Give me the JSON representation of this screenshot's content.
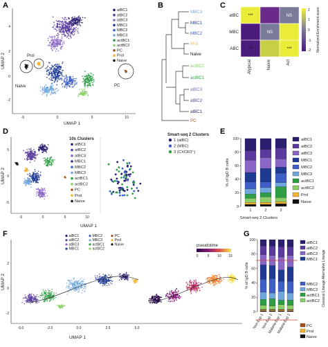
{
  "panels": {
    "A": {
      "letter": "A",
      "xlabel": "UMAP 1",
      "ylabel": "UMAP 2",
      "xticks": [
        "-5",
        "0",
        "5",
        "10"
      ],
      "yticks": [
        "-2",
        "0",
        "2",
        "4"
      ],
      "annotations": {
        "prol": "Prol",
        "naive": "Naive",
        "pc": "PC"
      },
      "legend": [
        "atBC1",
        "atBC2",
        "atBC3",
        "MBC1",
        "MBC2",
        "MBC3",
        "actBC1",
        "actBC2",
        "PC",
        "Prol",
        "Naive"
      ]
    },
    "B": {
      "letter": "B",
      "leaves": [
        "MBC3",
        "MBC1",
        "MBC2",
        "Prol",
        "Naive",
        "actBC2",
        "actBC1",
        "atBC3",
        "atBC2",
        "atBC1",
        "PC"
      ]
    },
    "C": {
      "letter": "C",
      "rows": [
        "atBC",
        "MBC",
        "ABC"
      ],
      "cols": [
        "Atypical",
        "Naive",
        "Act"
      ],
      "cells": [
        [
          "***",
          "",
          "NS"
        ],
        [
          "",
          "NS",
          ""
        ],
        [
          "***",
          "",
          "***"
        ]
      ],
      "colorbar_label": "Normalized Enrichment score",
      "colorbar_ticks": [
        "2",
        "1",
        "0",
        "-1",
        "-2"
      ]
    },
    "D": {
      "letter": "D",
      "xlabel": "UMAP 1",
      "ylabel": "UMAP 2",
      "xticks": [
        "-5",
        "0",
        "5",
        "10"
      ],
      "yticks": [
        "-5",
        "0",
        "5"
      ],
      "legend_title_10x": "10x Clusters",
      "legend_10x": [
        "atBC1",
        "atBC2",
        "atBC3",
        "MBC1",
        "MBC2",
        "MBC3",
        "actBC1",
        "actBC2",
        "PC",
        "Prol",
        "Naive"
      ],
      "legend_title_ss2": "Smart-seq 2 Clusters",
      "legend_ss2": [
        "1 (atBC)",
        "2 (MBC)",
        "3 (CXCR3⁺)"
      ]
    },
    "E": {
      "letter": "E",
      "ylabel": "% of IgD B cells",
      "xlabel": "Smart-seq 2 Clusters",
      "yticks": [
        "0",
        "20",
        "40",
        "60",
        "80",
        "100"
      ],
      "legend": [
        "atBC1",
        "atBC2",
        "atBC3",
        "MBC1",
        "MBC2",
        "MBC3",
        "actBC1",
        "actBC2",
        "Prol",
        "Naive"
      ]
    },
    "F": {
      "letter": "F",
      "xlabel": "UMAP 1",
      "ylabel": "UMAP 2",
      "xticks": [
        "-5.0",
        "-2.5",
        "0.0",
        "2.5",
        "5.0"
      ],
      "yticks": [
        "-2",
        "0",
        "2"
      ],
      "legend": [
        "atBC1",
        "atBC2",
        "atBC3",
        "MBC1",
        "MBC2",
        "MBC3",
        "actBC1",
        "actBC2",
        "PC",
        "Prol",
        "Naive"
      ],
      "pseudotime_label": "pseudotime",
      "pseudotime_ticks": [
        "0",
        "5",
        "10",
        "15"
      ]
    },
    "G": {
      "letter": "G",
      "ylabel": "% of IgD B cells",
      "yticks": [
        "0",
        "20",
        "40",
        "60",
        "80",
        "100"
      ],
      "categories": [
        "Non-Exp 1",
        "Non-Exp 2",
        "Malaria-Exp 1",
        "Malaria-Exp 2"
      ],
      "legend_top": [
        "atBC1",
        "atBC2",
        "atBC3",
        "MBC1"
      ],
      "legend_mid": [
        "MBC2",
        "MBC3",
        "actBC1",
        "actBC2"
      ],
      "legend_bottom": [
        "PC",
        "Prol",
        "Naive"
      ],
      "side_label": "Classical Lineage Alternative Lineage"
    }
  },
  "colors": {
    "atBC1": "#2a1e6e",
    "atBC2": "#5b3aa0",
    "atBC3": "#8a67c7",
    "MBC1": "#1f3a93",
    "MBC2": "#3e5fc7",
    "MBC3": "#6fa6dc",
    "actBC1": "#2e9e44",
    "actBC2": "#8ccf6a",
    "PC": "#a0521e",
    "Prol": "#f2b632",
    "Naive": "#111111"
  },
  "chart_data": [
    {
      "type": "bar",
      "panel": "E",
      "categories": [
        "1",
        "2",
        "3"
      ],
      "ylim": [
        0,
        100
      ],
      "ylabel": "% of IgD B cells",
      "xlabel": "Smart-seq 2 Clusters",
      "series": [
        {
          "name": "Naive",
          "values": [
            3,
            3,
            4
          ]
        },
        {
          "name": "Prol",
          "values": [
            3,
            3,
            3
          ]
        },
        {
          "name": "actBC2",
          "values": [
            6,
            8,
            6
          ]
        },
        {
          "name": "actBC1",
          "values": [
            6,
            6,
            16
          ]
        },
        {
          "name": "MBC3",
          "values": [
            8,
            8,
            6
          ]
        },
        {
          "name": "MBC2",
          "values": [
            10,
            8,
            14
          ]
        },
        {
          "name": "MBC1",
          "values": [
            14,
            20,
            9
          ]
        },
        {
          "name": "atBC3",
          "values": [
            18,
            16,
            12
          ]
        },
        {
          "name": "atBC2",
          "values": [
            14,
            12,
            16
          ]
        },
        {
          "name": "atBC1",
          "values": [
            18,
            16,
            14
          ]
        }
      ]
    },
    {
      "type": "bar",
      "panel": "G",
      "categories": [
        "Non-Exp 1",
        "Non-Exp 2",
        "Malaria-Exp 1",
        "Malaria-Exp 2"
      ],
      "ylim": [
        0,
        100
      ],
      "ylabel": "% of IgD B cells",
      "series": [
        {
          "name": "Naive",
          "values": [
            1,
            1,
            1,
            1
          ]
        },
        {
          "name": "Prol",
          "values": [
            1,
            1,
            1,
            1
          ]
        },
        {
          "name": "PC",
          "values": [
            1,
            1,
            1,
            1
          ]
        },
        {
          "name": "actBC2",
          "values": [
            6,
            5,
            7,
            6
          ]
        },
        {
          "name": "actBC1",
          "values": [
            8,
            10,
            6,
            7
          ]
        },
        {
          "name": "MBC3",
          "values": [
            10,
            8,
            12,
            10
          ]
        },
        {
          "name": "MBC2",
          "values": [
            18,
            20,
            14,
            16
          ]
        },
        {
          "name": "MBC1",
          "values": [
            20,
            18,
            16,
            20
          ]
        },
        {
          "name": "atBC3",
          "values": [
            14,
            14,
            18,
            16
          ]
        },
        {
          "name": "atBC2",
          "values": [
            12,
            13,
            14,
            12
          ]
        },
        {
          "name": "atBC1",
          "values": [
            9,
            9,
            10,
            10
          ]
        }
      ]
    }
  ]
}
